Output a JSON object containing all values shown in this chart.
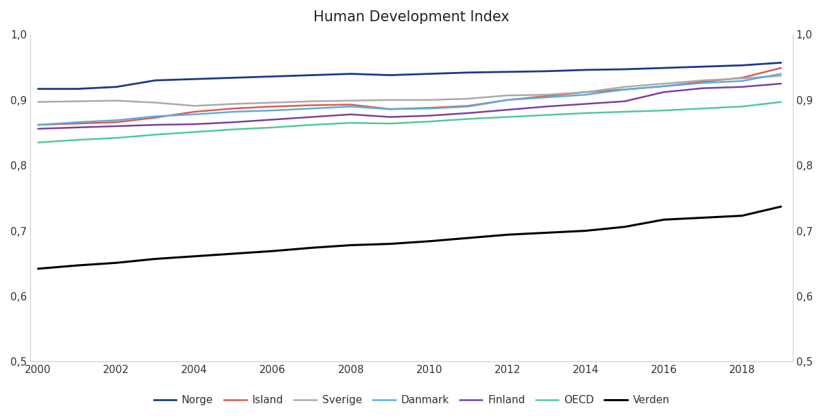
{
  "title": "Human Development Index",
  "years": [
    2000,
    2001,
    2002,
    2003,
    2004,
    2005,
    2006,
    2007,
    2008,
    2009,
    2010,
    2011,
    2012,
    2013,
    2014,
    2015,
    2016,
    2017,
    2018,
    2019
  ],
  "series": {
    "Norge": {
      "color": "#1a3a8c",
      "linewidth": 2.0,
      "values": [
        0.917,
        0.917,
        0.92,
        0.93,
        0.932,
        0.934,
        0.936,
        0.938,
        0.94,
        0.938,
        0.94,
        0.942,
        0.943,
        0.944,
        0.946,
        0.947,
        0.949,
        0.951,
        0.953,
        0.957
      ]
    },
    "Island": {
      "color": "#e05a4e",
      "linewidth": 1.8,
      "values": [
        0.862,
        0.864,
        0.866,
        0.873,
        0.882,
        0.887,
        0.89,
        0.892,
        0.893,
        0.886,
        0.888,
        0.891,
        0.9,
        0.906,
        0.912,
        0.916,
        0.921,
        0.928,
        0.934,
        0.949
      ]
    },
    "Sverige": {
      "color": "#aaaaaa",
      "linewidth": 1.8,
      "values": [
        0.897,
        0.898,
        0.899,
        0.896,
        0.891,
        0.894,
        0.896,
        0.898,
        0.899,
        0.9,
        0.9,
        0.902,
        0.907,
        0.908,
        0.912,
        0.92,
        0.925,
        0.93,
        0.933,
        0.937
      ]
    },
    "Danmark": {
      "color": "#5badde",
      "linewidth": 1.8,
      "values": [
        0.862,
        0.866,
        0.869,
        0.875,
        0.878,
        0.882,
        0.884,
        0.887,
        0.89,
        0.886,
        0.887,
        0.89,
        0.9,
        0.904,
        0.908,
        0.916,
        0.921,
        0.926,
        0.929,
        0.94
      ]
    },
    "Finland": {
      "color": "#7b3fa0",
      "linewidth": 1.8,
      "values": [
        0.856,
        0.858,
        0.86,
        0.862,
        0.863,
        0.866,
        0.87,
        0.874,
        0.878,
        0.874,
        0.876,
        0.88,
        0.885,
        0.89,
        0.894,
        0.898,
        0.912,
        0.918,
        0.92,
        0.925
      ]
    },
    "OECD": {
      "color": "#4dc9a0",
      "linewidth": 1.8,
      "values": [
        0.835,
        0.839,
        0.842,
        0.847,
        0.851,
        0.855,
        0.858,
        0.862,
        0.865,
        0.864,
        0.867,
        0.871,
        0.874,
        0.877,
        0.88,
        0.882,
        0.884,
        0.887,
        0.89,
        0.897
      ]
    },
    "Verden": {
      "color": "#000000",
      "linewidth": 2.2,
      "values": [
        0.642,
        0.647,
        0.651,
        0.657,
        0.661,
        0.665,
        0.669,
        0.674,
        0.678,
        0.68,
        0.684,
        0.689,
        0.694,
        0.697,
        0.7,
        0.706,
        0.717,
        0.72,
        0.723,
        0.737
      ]
    }
  },
  "ylim": [
    0.5,
    1.0
  ],
  "yticks": [
    0.5,
    0.6,
    0.7,
    0.8,
    0.9,
    1.0
  ],
  "yticklabels": [
    "0,5",
    "0,6",
    "0,7",
    "0,8",
    "0,9",
    "1,0"
  ],
  "xticks": [
    2000,
    2002,
    2004,
    2006,
    2008,
    2010,
    2012,
    2014,
    2016,
    2018
  ],
  "legend_order": [
    "Norge",
    "Island",
    "Sverige",
    "Danmark",
    "Finland",
    "OECD",
    "Verden"
  ]
}
